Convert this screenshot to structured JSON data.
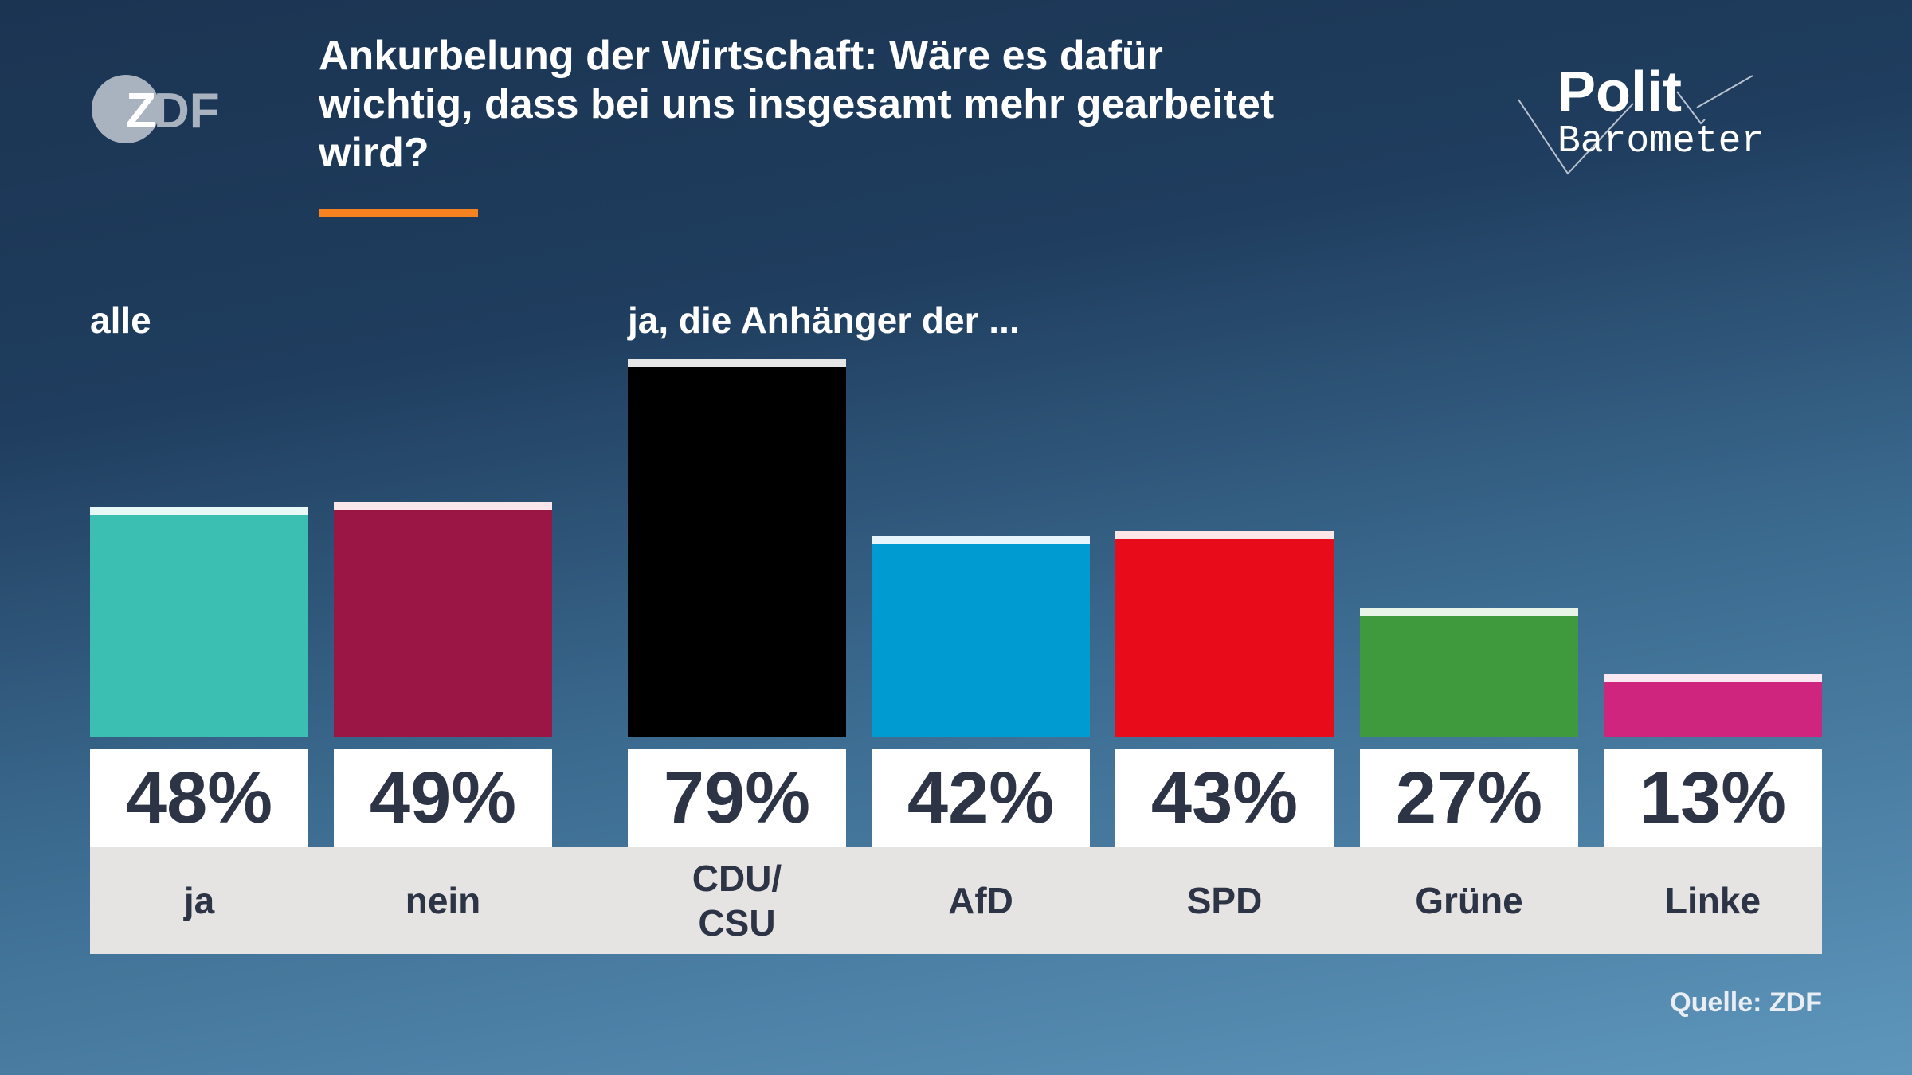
{
  "header": {
    "title": "Ankurbelung der Wirtschaft: Wäre es dafür wichtig, dass bei uns insgesamt mehr gearbeitet wird?",
    "logo_left": "ZDF",
    "logo_right": "Polit Barometer"
  },
  "chart_data": {
    "type": "bar",
    "title": "Ankurbelung der Wirtschaft: Wäre es dafür wichtig, dass bei uns insgesamt mehr gearbeitet wird?",
    "groups": [
      {
        "label": "alle",
        "categories": [
          "ja",
          "nein"
        ]
      },
      {
        "label": "ja, die Anhänger der ...",
        "categories": [
          "CDU/\nCSU",
          "AfD",
          "SPD",
          "Grüne",
          "Linke"
        ]
      }
    ],
    "categories": [
      "ja",
      "nein",
      "CDU/\nCSU",
      "AfD",
      "SPD",
      "Grüne",
      "Linke"
    ],
    "values": [
      48,
      49,
      79,
      42,
      43,
      27,
      13
    ],
    "value_labels": [
      "48%",
      "49%",
      "79%",
      "42%",
      "43%",
      "27%",
      "13%"
    ],
    "colors": [
      "#3bbfb2",
      "#9b1545",
      "#000000",
      "#009bd0",
      "#e80b19",
      "#3f9a3d",
      "#d0257f"
    ],
    "cap_colors": [
      "#e8f8f6",
      "#fbe6ec",
      "#e6e6e6",
      "#e6f5fb",
      "#fde6e8",
      "#e8f4e8",
      "#fae8f2"
    ],
    "ylim": [
      0,
      100
    ],
    "unit": "%",
    "source": "Quelle: ZDF",
    "accent_color": "#f68220"
  }
}
